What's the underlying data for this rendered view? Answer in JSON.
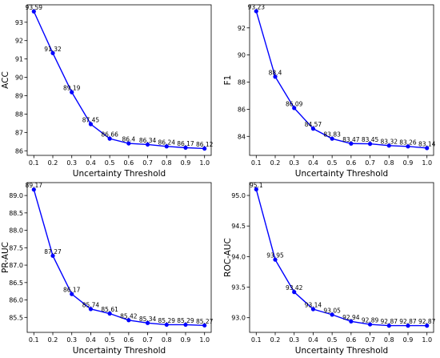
{
  "chart_data": [
    {
      "type": "line",
      "xlabel": "Uncertainty Threshold",
      "ylabel": "ACC",
      "x": [
        0.1,
        0.2,
        0.3,
        0.4,
        0.5,
        0.6,
        0.7,
        0.8,
        0.9,
        1.0
      ],
      "x_ticks": [
        "0.1",
        "0.2",
        "0.3",
        "0.4",
        "0.5",
        "0.6",
        "0.7",
        "0.8",
        "0.9",
        "1.0"
      ],
      "series": [
        {
          "values": [
            93.59,
            91.32,
            89.19,
            87.45,
            86.66,
            86.4,
            86.34,
            86.24,
            86.17,
            86.12
          ]
        }
      ],
      "data_labels": [
        "93.59",
        "91.32",
        "89.19",
        "87.45",
        "86.66",
        "86.4",
        "86.34",
        "86.24",
        "86.17",
        "86.12"
      ],
      "y_ticks": [
        86,
        87,
        88,
        89,
        90,
        91,
        92,
        93
      ],
      "y_tick_labels": [
        "86",
        "87",
        "88",
        "89",
        "90",
        "91",
        "92",
        "93"
      ],
      "xlim": [
        0.065,
        1.035
      ],
      "ylim": [
        85.75,
        93.95
      ],
      "color": "#0000ff",
      "grid": false
    },
    {
      "type": "line",
      "xlabel": "Uncertainty Threshold",
      "ylabel": "F1",
      "x": [
        0.1,
        0.2,
        0.3,
        0.4,
        0.5,
        0.6,
        0.7,
        0.8,
        0.9,
        1.0
      ],
      "x_ticks": [
        "0.1",
        "0.2",
        "0.3",
        "0.4",
        "0.5",
        "0.6",
        "0.7",
        "0.8",
        "0.9",
        "1.0"
      ],
      "series": [
        {
          "values": [
            93.23,
            88.4,
            86.09,
            84.57,
            83.83,
            83.47,
            83.45,
            83.32,
            83.26,
            83.14
          ]
        }
      ],
      "data_labels": [
        "93.23",
        "88.4",
        "86.09",
        "84.57",
        "83.83",
        "83.47",
        "83.45",
        "83.32",
        "83.26",
        "83.14"
      ],
      "y_ticks": [
        84,
        86,
        88,
        90,
        92
      ],
      "y_tick_labels": [
        "84",
        "86",
        "88",
        "90",
        "92"
      ],
      "xlim": [
        0.065,
        1.035
      ],
      "ylim": [
        82.6,
        93.7
      ],
      "color": "#0000ff",
      "grid": false
    },
    {
      "type": "line",
      "xlabel": "Uncertainty Threshold",
      "ylabel": "PR-AUC",
      "x": [
        0.1,
        0.2,
        0.3,
        0.4,
        0.5,
        0.6,
        0.7,
        0.8,
        0.9,
        1.0
      ],
      "x_ticks": [
        "0.1",
        "0.2",
        "0.3",
        "0.4",
        "0.5",
        "0.6",
        "0.7",
        "0.8",
        "0.9",
        "1.0"
      ],
      "series": [
        {
          "values": [
            89.17,
            87.27,
            86.17,
            85.74,
            85.61,
            85.42,
            85.34,
            85.29,
            85.29,
            85.27
          ]
        }
      ],
      "data_labels": [
        "89.17",
        "87.27",
        "86.17",
        "85.74",
        "85.61",
        "85.42",
        "85.34",
        "85.29",
        "85.29",
        "85.27"
      ],
      "y_ticks": [
        85.5,
        86.0,
        86.5,
        87.0,
        87.5,
        88.0,
        88.5,
        89.0
      ],
      "y_tick_labels": [
        "85.5",
        "86.0",
        "86.5",
        "87.0",
        "87.5",
        "88.0",
        "88.5",
        "89.0"
      ],
      "xlim": [
        0.065,
        1.035
      ],
      "ylim": [
        85.07,
        89.37
      ],
      "color": "#0000ff",
      "grid": false
    },
    {
      "type": "line",
      "xlabel": "Uncertainty Threshold",
      "ylabel": "ROC-AUC",
      "x": [
        0.1,
        0.2,
        0.3,
        0.4,
        0.5,
        0.6,
        0.7,
        0.8,
        0.9,
        1.0
      ],
      "x_ticks": [
        "0.1",
        "0.2",
        "0.3",
        "0.4",
        "0.5",
        "0.6",
        "0.7",
        "0.8",
        "0.9",
        "1.0"
      ],
      "series": [
        {
          "values": [
            95.1,
            93.95,
            93.42,
            93.14,
            93.05,
            92.94,
            92.89,
            92.87,
            92.87,
            92.87
          ]
        }
      ],
      "data_labels": [
        "95.1",
        "93.95",
        "93.42",
        "93.14",
        "93.05",
        "92.94",
        "92.89",
        "92.87",
        "92.87",
        "92.87"
      ],
      "y_ticks": [
        93.0,
        93.5,
        94.0,
        94.5,
        95.0
      ],
      "y_tick_labels": [
        "93.0",
        "93.5",
        "94.0",
        "94.5",
        "95.0"
      ],
      "xlim": [
        0.065,
        1.035
      ],
      "ylim": [
        92.76,
        95.21
      ],
      "color": "#0000ff",
      "grid": false
    }
  ]
}
